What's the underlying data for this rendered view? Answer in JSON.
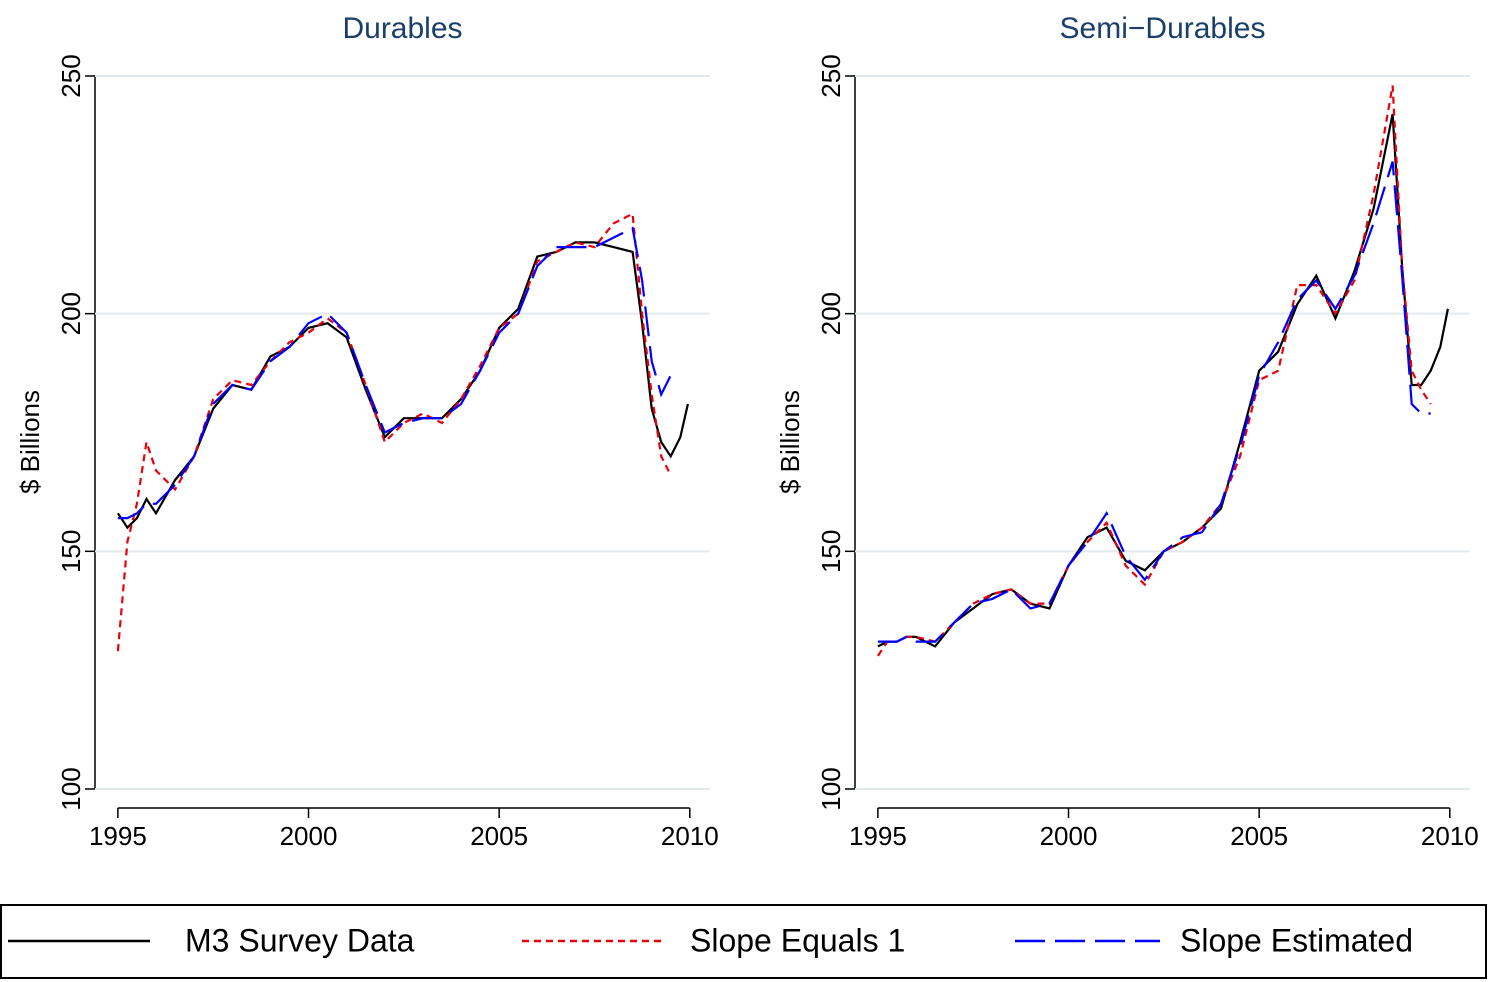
{
  "chart_data": [
    {
      "type": "line",
      "title": "Durables",
      "ylabel": "$ Billions",
      "x": [
        1995.0,
        1995.25,
        1995.5,
        1995.75,
        1996.0,
        1996.5,
        1997.0,
        1997.5,
        1998.0,
        1998.5,
        1999.0,
        1999.5,
        2000.0,
        2000.5,
        2001.0,
        2001.5,
        2002.0,
        2002.5,
        2003.0,
        2003.5,
        2004.0,
        2004.5,
        2005.0,
        2005.5,
        2006.0,
        2006.5,
        2007.0,
        2007.5,
        2008.0,
        2008.5,
        2008.75,
        2009.0,
        2009.25,
        2009.5,
        2009.75,
        2009.95
      ],
      "series": [
        {
          "name": "M3 Survey Data",
          "color": "#000000",
          "dash": "solid",
          "values": [
            158,
            155,
            157,
            161,
            158,
            165,
            170,
            180,
            185,
            184,
            191,
            193,
            197,
            198,
            195,
            184,
            174,
            178,
            178,
            178,
            182,
            188,
            197,
            201,
            212,
            213,
            215,
            215,
            214,
            213,
            198,
            180,
            173,
            170,
            174,
            181
          ]
        },
        {
          "name": "Slope Equals 1",
          "color": "#e8000b",
          "dash": "short",
          "values": [
            129,
            152,
            160,
            173,
            167,
            163,
            170,
            182,
            186,
            185,
            190,
            194,
            196,
            199,
            196,
            185,
            173,
            177,
            179,
            177,
            182,
            189,
            197,
            200,
            211,
            213,
            215,
            214,
            219,
            221,
            200,
            183,
            170,
            166,
            null,
            null
          ]
        },
        {
          "name": "Slope Estimated",
          "color": "#0000ff",
          "dash": "long",
          "values": [
            157,
            157,
            158,
            160,
            160,
            164,
            170,
            181,
            185,
            184,
            190,
            193,
            198,
            200,
            196,
            185,
            175,
            177,
            178,
            178,
            181,
            188,
            196,
            200,
            210,
            214,
            214,
            214,
            216,
            218,
            207,
            190,
            183,
            187,
            null,
            null
          ]
        }
      ],
      "xlim": [
        1994.4,
        2010.53
      ],
      "ylim": [
        96,
        250
      ],
      "xticks": [
        1995,
        2000,
        2005,
        2010
      ],
      "yticks": [
        100,
        150,
        200,
        250
      ],
      "grid": true
    },
    {
      "type": "line",
      "title": "Semi−Durables",
      "ylabel": "$ Billions",
      "x": [
        1995.0,
        1995.25,
        1995.5,
        1995.75,
        1996.0,
        1996.5,
        1997.0,
        1997.5,
        1998.0,
        1998.5,
        1999.0,
        1999.5,
        2000.0,
        2000.5,
        2001.0,
        2001.5,
        2002.0,
        2002.5,
        2003.0,
        2003.5,
        2004.0,
        2004.5,
        2005.0,
        2005.5,
        2006.0,
        2006.5,
        2007.0,
        2007.5,
        2008.0,
        2008.5,
        2008.75,
        2009.0,
        2009.25,
        2009.5,
        2009.75,
        2009.95
      ],
      "series": [
        {
          "color": "#000000",
          "dash": "solid",
          "values": [
            130,
            131,
            131,
            132,
            132,
            130,
            135,
            138,
            141,
            142,
            139,
            138,
            147,
            153,
            155,
            148,
            146,
            150,
            152,
            155,
            159,
            173,
            188,
            192,
            202,
            208,
            199,
            209,
            222,
            242,
            210,
            185,
            185,
            188,
            193,
            201
          ]
        },
        {
          "color": "#e8000b",
          "dash": "short",
          "values": [
            128,
            131,
            131,
            132,
            132,
            131,
            135,
            139,
            141,
            142,
            139,
            139,
            147,
            152,
            156,
            147,
            143,
            150,
            152,
            155,
            160,
            170,
            186,
            188,
            206,
            206,
            200,
            207,
            225,
            248,
            210,
            188,
            184,
            181,
            null,
            null
          ]
        },
        {
          "color": "#0000ff",
          "dash": "long",
          "values": [
            131,
            131,
            131,
            132,
            131,
            131,
            135,
            139,
            140,
            142,
            138,
            139,
            147,
            152,
            158,
            149,
            144,
            150,
            153,
            154,
            160,
            172,
            187,
            194,
            203,
            207,
            201,
            208,
            219,
            232,
            208,
            181,
            179,
            179,
            null,
            null
          ]
        }
      ],
      "xlim": [
        1994.4,
        2010.53
      ],
      "ylim": [
        96,
        250
      ],
      "xticks": [
        1995,
        2000,
        2005,
        2010
      ],
      "yticks": [
        100,
        150,
        200,
        250
      ],
      "grid": true
    }
  ]
}
